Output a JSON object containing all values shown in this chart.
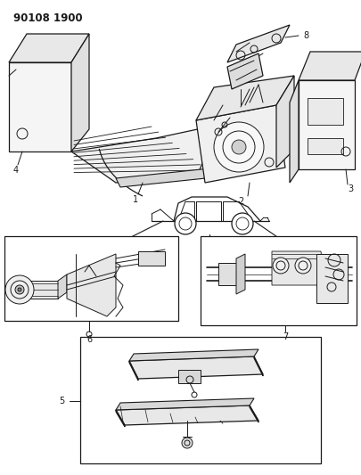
{
  "title_code": "90108 1900",
  "bg_color": "#ffffff",
  "line_color": "#1a1a1a",
  "fig_width": 4.05,
  "fig_height": 5.33,
  "dpi": 100,
  "title_fontsize": 8.5,
  "label_fontsize": 7
}
